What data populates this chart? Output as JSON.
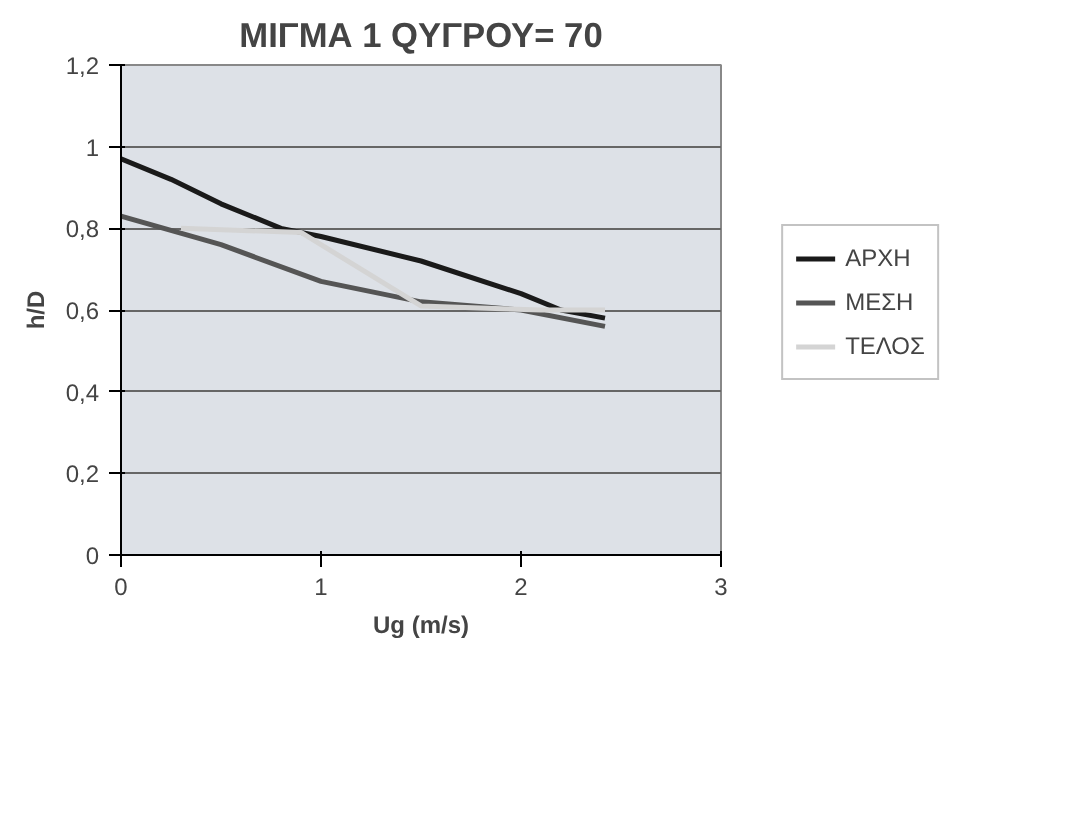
{
  "chart_data": {
    "type": "line",
    "title": "ΜΙΓΜΑ 1 QΥΓΡΟΥ= 70",
    "xlabel": "Ug (m/s)",
    "ylabel": "h/D",
    "xlim": [
      0,
      3
    ],
    "xticks": [
      0,
      1,
      2,
      3
    ],
    "ylim": [
      0,
      1.2
    ],
    "yticks": [
      0,
      {
        "value": 0.2,
        "label": "0,2"
      },
      {
        "value": 0.4,
        "label": "0,4"
      },
      {
        "value": 0.6,
        "label": "0,6"
      },
      {
        "value": 0.8,
        "label": "0,8"
      },
      1,
      {
        "value": 1.2,
        "label": "1,2"
      }
    ],
    "grid": "y",
    "legend": "right",
    "marker": "none",
    "line_style": "solid",
    "series": [
      {
        "name": "ΑΡΧΗ",
        "color": "#1a1a1a",
        "x": [
          0,
          0.25,
          0.5,
          0.8,
          1.0,
          1.5,
          2.0,
          2.2,
          2.42
        ],
        "values": [
          0.97,
          0.92,
          0.86,
          0.8,
          0.78,
          0.72,
          0.64,
          0.6,
          0.58
        ]
      },
      {
        "name": "ΜΕΣΗ",
        "color": "#555555",
        "x": [
          0,
          0.5,
          1.0,
          1.5,
          2.0,
          2.42
        ],
        "values": [
          0.83,
          0.76,
          0.67,
          0.62,
          0.6,
          0.56
        ]
      },
      {
        "name": "ΤΕΛΟΣ",
        "color": "#d4d4d4",
        "x": [
          0.3,
          0.9,
          1.5,
          2.1,
          2.42
        ],
        "values": [
          0.8,
          0.79,
          0.61,
          0.6,
          0.6
        ]
      }
    ]
  }
}
